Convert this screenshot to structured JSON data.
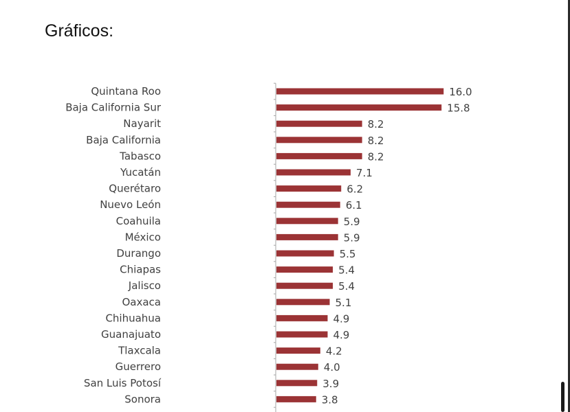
{
  "page": {
    "title": "Gráficos:"
  },
  "chart_data": {
    "type": "bar",
    "orientation": "horizontal",
    "bar_color": "#9b3335",
    "categories": [
      "Quintana Roo",
      "Baja California Sur",
      "Nayarit",
      "Baja California",
      "Tabasco",
      "Yucatán",
      "Querétaro",
      "Nuevo León",
      "Coahuila",
      "México",
      "Durango",
      "Chiapas",
      "Jalisco",
      "Oaxaca",
      "Chihuahua",
      "Guanajuato",
      "Tlaxcala",
      "Guerrero",
      "San Luis Potosí",
      "Sonora"
    ],
    "values": [
      16.0,
      15.8,
      8.2,
      8.2,
      8.2,
      7.1,
      6.2,
      6.1,
      5.9,
      5.9,
      5.5,
      5.4,
      5.4,
      5.1,
      4.9,
      4.9,
      4.2,
      4.0,
      3.9,
      3.8
    ],
    "value_labels": [
      "16.0",
      "15.8",
      "8.2",
      "8.2",
      "8.2",
      "7.1",
      "6.2",
      "6.1",
      "5.9",
      "5.9",
      "5.5",
      "5.4",
      "5.4",
      "5.1",
      "4.9",
      "4.9",
      "4.2",
      "4.0",
      "3.9",
      "3.8"
    ],
    "grid": false,
    "legend": "none"
  }
}
